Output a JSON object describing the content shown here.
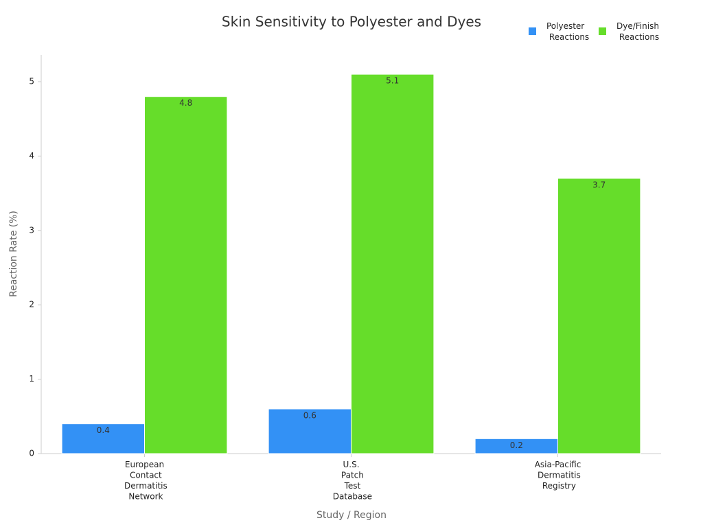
{
  "chart_data": {
    "type": "bar",
    "title": "Skin Sensitivity to Polyester and Dyes",
    "x_label": "Study / Region",
    "y_label": "Reaction Rate (%)",
    "categories": [
      "European Contact Dermatitis Network",
      "U.S. Patch Test Database",
      "Asia-Pacific Dermatitis Registry"
    ],
    "series": [
      {
        "name": "Polyester Reactions",
        "color": "#3391f5",
        "values": [
          0.4,
          0.6,
          0.2
        ]
      },
      {
        "name": "Dye/Finish Reactions",
        "color": "#66dd2a",
        "values": [
          4.8,
          5.1,
          3.7
        ]
      }
    ],
    "ylim": [
      0,
      5.36
    ],
    "yticks": [
      0,
      1,
      2,
      3,
      4,
      5
    ],
    "grid": false,
    "legend": "top-right"
  }
}
